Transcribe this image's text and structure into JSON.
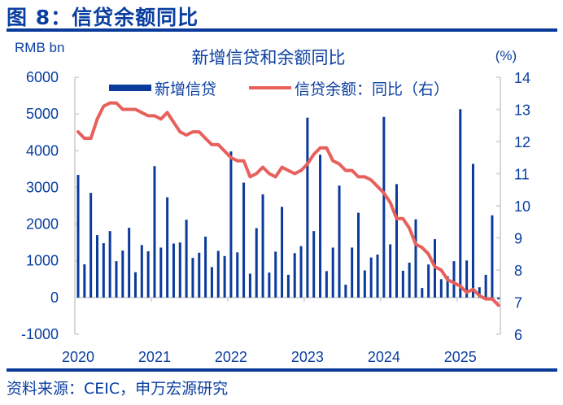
{
  "header": {
    "figure_title": "图 8：信贷余额同比"
  },
  "footer": {
    "source": "资料来源：CEIC，申万宏源研究"
  },
  "colors": {
    "bar": "#0a3a9a",
    "line": "#e8605c",
    "text": "#0a3ea0",
    "axis": "#d8d8d8",
    "rule": "#0a3a9a"
  },
  "chart_data": {
    "type": "bar+line",
    "title": "新增信贷和余额同比",
    "ylabel_left": "RMB bn",
    "ylabel_right": "(%)",
    "ylim_left": [
      -1000,
      6000
    ],
    "ylim_right": [
      6,
      14
    ],
    "yticks_left": [
      "6000",
      "5000",
      "4000",
      "3000",
      "2000",
      "1000",
      "0",
      "-1000"
    ],
    "yticks_right": [
      "14",
      "13",
      "12",
      "11",
      "10",
      "9",
      "8",
      "7",
      "6"
    ],
    "xtick_labels": [
      "2020",
      "2021",
      "2022",
      "2023",
      "2024",
      "2025"
    ],
    "grid": false,
    "legend_position": "top",
    "categories": [
      "2020-01",
      "2020-02",
      "2020-03",
      "2020-04",
      "2020-05",
      "2020-06",
      "2020-07",
      "2020-08",
      "2020-09",
      "2020-10",
      "2020-11",
      "2020-12",
      "2021-01",
      "2021-02",
      "2021-03",
      "2021-04",
      "2021-05",
      "2021-06",
      "2021-07",
      "2021-08",
      "2021-09",
      "2021-10",
      "2021-11",
      "2021-12",
      "2022-01",
      "2022-02",
      "2022-03",
      "2022-04",
      "2022-05",
      "2022-06",
      "2022-07",
      "2022-08",
      "2022-09",
      "2022-10",
      "2022-11",
      "2022-12",
      "2023-01",
      "2023-02",
      "2023-03",
      "2023-04",
      "2023-05",
      "2023-06",
      "2023-07",
      "2023-08",
      "2023-09",
      "2023-10",
      "2023-11",
      "2023-12",
      "2024-01",
      "2024-02",
      "2024-03",
      "2024-04",
      "2024-05",
      "2024-06",
      "2024-07",
      "2024-08",
      "2024-09",
      "2024-10",
      "2024-11",
      "2024-12",
      "2025-01",
      "2025-02",
      "2025-03",
      "2025-04",
      "2025-05",
      "2025-06",
      "2025-07"
    ],
    "series": [
      {
        "name": "新增信贷",
        "type": "bar",
        "axis": "left",
        "values": [
          3340,
          905,
          2850,
          1700,
          1480,
          1810,
          990,
          1280,
          1900,
          690,
          1430,
          1260,
          3580,
          1360,
          2730,
          1470,
          1500,
          2120,
          1080,
          1220,
          1660,
          830,
          1270,
          1130,
          3980,
          1230,
          3130,
          650,
          1890,
          2810,
          680,
          1250,
          2470,
          620,
          1210,
          1400,
          4900,
          1810,
          3890,
          720,
          1360,
          3050,
          350,
          1360,
          2310,
          740,
          1090,
          1170,
          4920,
          1450,
          3090,
          730,
          950,
          2130,
          260,
          900,
          1590,
          500,
          580,
          990,
          5130,
          1010,
          3640,
          280,
          620,
          2240,
          -50
        ]
      },
      {
        "name": "信贷余额：同比（右）",
        "type": "line",
        "axis": "right",
        "values": [
          12.3,
          12.1,
          12.1,
          12.7,
          13.1,
          13.2,
          13.2,
          13.0,
          13.0,
          13.0,
          12.9,
          12.8,
          12.8,
          12.7,
          12.9,
          12.6,
          12.3,
          12.2,
          12.3,
          12.3,
          12.1,
          11.9,
          11.9,
          11.7,
          11.5,
          11.4,
          11.4,
          10.9,
          11.0,
          11.2,
          11.0,
          10.9,
          11.2,
          11.1,
          11.0,
          11.1,
          11.3,
          11.6,
          11.8,
          11.8,
          11.4,
          11.3,
          11.1,
          11.1,
          10.9,
          10.9,
          10.8,
          10.6,
          10.4,
          10.1,
          9.6,
          9.6,
          9.3,
          8.8,
          8.7,
          8.5,
          8.1,
          8.0,
          7.7,
          7.6,
          7.5,
          7.3,
          7.4,
          7.2,
          7.1,
          7.1,
          6.9
        ]
      }
    ]
  }
}
